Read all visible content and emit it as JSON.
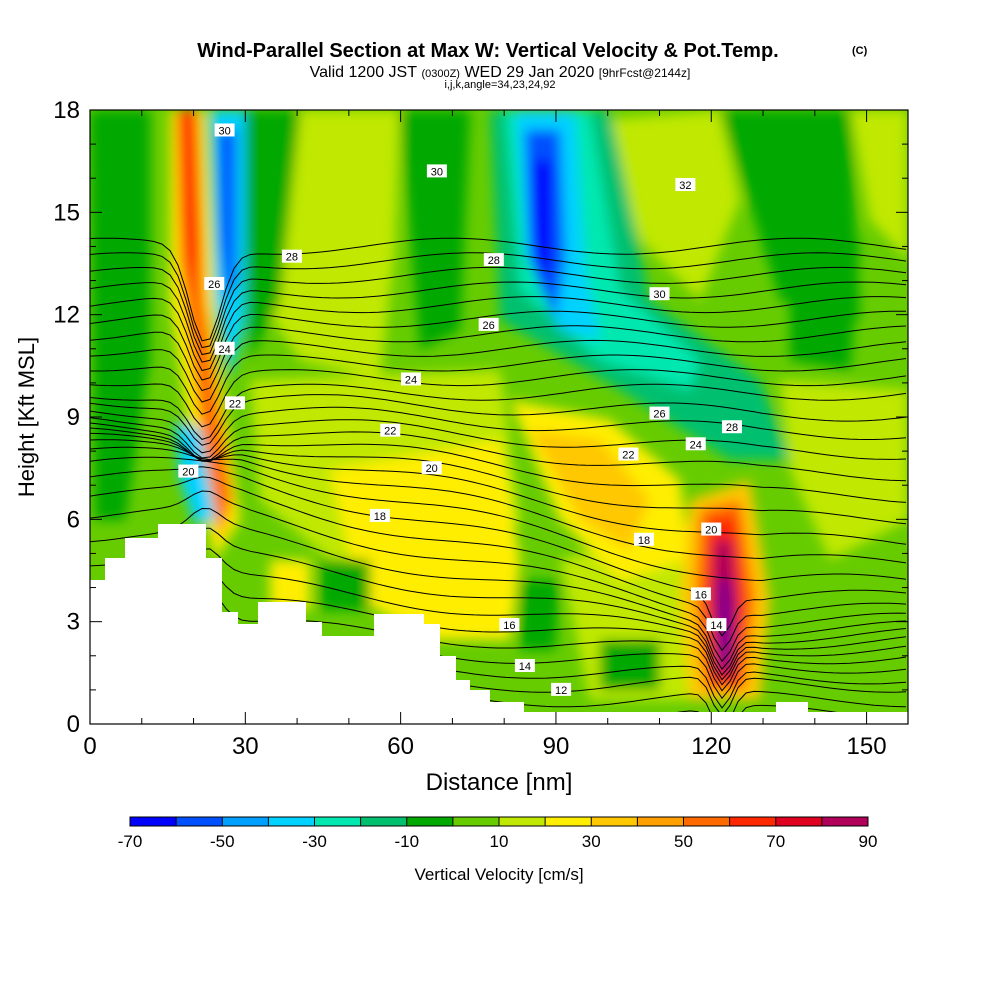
{
  "header": {
    "title": "Wind-Parallel Section at Max W: Vertical Velocity & Pot.Temp.",
    "title_mark": "(C)",
    "valid_prefix": "Valid 1200 JST",
    "valid_utc": "(0300Z)",
    "valid_date": "WED 29 Jan 2020",
    "forecast": "[9hrFcst@2144z]",
    "params": "i,j,k,angle=34,23,24,92"
  },
  "chart_data": {
    "type": "contour",
    "xlabel": "Distance [nm]",
    "ylabel": "Height [Kft MSL]",
    "xlim": [
      0,
      158
    ],
    "ylim": [
      0,
      18
    ],
    "x_ticks": [
      0,
      30,
      60,
      90,
      120,
      150
    ],
    "y_ticks": [
      0,
      3,
      6,
      9,
      12,
      15,
      18
    ],
    "x_tick_labels": [
      "0",
      "30",
      "60",
      "90",
      "120",
      "150"
    ],
    "y_tick_labels": [
      "0",
      "3",
      "6",
      "9",
      "12",
      "15",
      "18"
    ],
    "colorbar": {
      "label": "Vertical Velocity [cm/s]",
      "levels": [
        -70,
        -60,
        -50,
        -40,
        -30,
        -20,
        -10,
        0,
        10,
        20,
        30,
        40,
        50,
        60,
        70,
        80,
        90
      ],
      "tick_values": [
        -70,
        -50,
        -30,
        -10,
        10,
        30,
        50,
        70,
        90
      ],
      "tick_labels": [
        "-70",
        "-50",
        "-30",
        "-10",
        "10",
        "30",
        "50",
        "70",
        "90"
      ],
      "colors": [
        "#0000ff",
        "#0050ff",
        "#00a0ff",
        "#00d2ff",
        "#00e8b0",
        "#00c070",
        "#00a800",
        "#66cc00",
        "#c0e800",
        "#ffee00",
        "#ffc800",
        "#ffa000",
        "#ff6a00",
        "#ff2800",
        "#e00020",
        "#b0005a",
        "#800090"
      ]
    },
    "theta_contours": [
      12,
      14,
      16,
      18,
      20,
      22,
      24,
      26,
      28,
      30,
      32
    ],
    "contour_labels": [
      {
        "x": 26,
        "y": 17.4,
        "text": "30"
      },
      {
        "x": 67,
        "y": 16.2,
        "text": "30"
      },
      {
        "x": 115,
        "y": 15.8,
        "text": "32"
      },
      {
        "x": 39,
        "y": 13.7,
        "text": "28"
      },
      {
        "x": 78,
        "y": 13.6,
        "text": "28"
      },
      {
        "x": 24,
        "y": 12.9,
        "text": "26"
      },
      {
        "x": 110,
        "y": 12.6,
        "text": "30"
      },
      {
        "x": 77,
        "y": 11.7,
        "text": "26"
      },
      {
        "x": 26,
        "y": 11.0,
        "text": "24"
      },
      {
        "x": 62,
        "y": 10.1,
        "text": "24"
      },
      {
        "x": 28,
        "y": 9.4,
        "text": "22"
      },
      {
        "x": 110,
        "y": 9.1,
        "text": "26"
      },
      {
        "x": 124,
        "y": 8.7,
        "text": "28"
      },
      {
        "x": 58,
        "y": 8.6,
        "text": "22"
      },
      {
        "x": 117,
        "y": 8.2,
        "text": "24"
      },
      {
        "x": 104,
        "y": 7.9,
        "text": "22"
      },
      {
        "x": 19,
        "y": 7.4,
        "text": "20"
      },
      {
        "x": 66,
        "y": 7.5,
        "text": "20"
      },
      {
        "x": 56,
        "y": 6.1,
        "text": "18"
      },
      {
        "x": 120,
        "y": 5.7,
        "text": "20"
      },
      {
        "x": 107,
        "y": 5.4,
        "text": "18"
      },
      {
        "x": 118,
        "y": 3.8,
        "text": "16"
      },
      {
        "x": 81,
        "y": 2.9,
        "text": "16"
      },
      {
        "x": 121,
        "y": 2.9,
        "text": "14"
      },
      {
        "x": 84,
        "y": 1.7,
        "text": "14"
      },
      {
        "x": 91,
        "y": 1.0,
        "text": "12"
      }
    ]
  }
}
